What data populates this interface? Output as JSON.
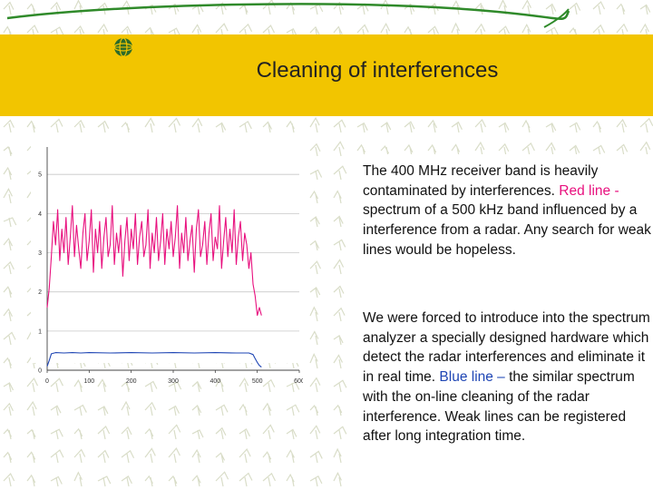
{
  "slide": {
    "title": "Cleaning of interferences",
    "colors": {
      "title_band": "#f2c500",
      "red_line": "#e8107e",
      "blue_line": "#1e45b4"
    }
  },
  "text": {
    "paragraph1": {
      "before": "The 400 MHz receiver band is heavily contaminated by interferences. ",
      "highlight": "Red line - ",
      "after": "spectrum of a 500 kHz band influenced by a interference from a radar. Any search for weak lines would be hopeless."
    },
    "paragraph2": {
      "before": "We were forced to introduce into the spectrum analyzer a specially designed hardware which detect the radar interferences and eliminate it in real time. ",
      "highlight": "Blue line – ",
      "after": "the similar spectrum with the on-line cleaning of the radar interference. Weak lines can be registered after long integration time."
    }
  },
  "chart_data": {
    "type": "line",
    "x_ticks": [
      "0",
      "100",
      "200",
      "300",
      "400",
      "500",
      "600"
    ],
    "y_ticks": [
      "0",
      "1",
      "2",
      "3",
      "4",
      "5"
    ],
    "xlim": [
      0,
      600
    ],
    "ylim": [
      0,
      5.7
    ],
    "grid": true,
    "series": [
      {
        "color": "#e8107e",
        "x": [
          0,
          5,
          10,
          15,
          20,
          25,
          30,
          35,
          40,
          45,
          50,
          55,
          60,
          65,
          70,
          75,
          80,
          85,
          90,
          95,
          100,
          105,
          110,
          115,
          120,
          125,
          130,
          135,
          140,
          145,
          150,
          155,
          160,
          165,
          170,
          175,
          180,
          185,
          190,
          195,
          200,
          205,
          210,
          215,
          220,
          225,
          230,
          235,
          240,
          245,
          250,
          255,
          260,
          265,
          270,
          275,
          280,
          285,
          290,
          295,
          300,
          305,
          310,
          315,
          320,
          325,
          330,
          335,
          340,
          345,
          350,
          355,
          360,
          365,
          370,
          375,
          380,
          385,
          390,
          395,
          400,
          405,
          410,
          415,
          420,
          425,
          430,
          435,
          440,
          445,
          450,
          455,
          460,
          465,
          470,
          475,
          480,
          485,
          490,
          495,
          500,
          505,
          510
        ],
        "y": [
          1.6,
          2.1,
          2.9,
          3.8,
          3.2,
          4.1,
          2.8,
          3.6,
          3.0,
          3.9,
          2.7,
          3.4,
          4.2,
          2.9,
          3.7,
          3.1,
          2.6,
          3.5,
          4.0,
          2.8,
          3.3,
          4.1,
          2.5,
          3.6,
          3.0,
          3.8,
          2.6,
          3.4,
          3.9,
          2.9,
          3.2,
          4.2,
          2.7,
          3.5,
          3.0,
          3.7,
          2.4,
          3.3,
          3.9,
          2.8,
          3.6,
          3.1,
          4.0,
          2.7,
          3.4,
          3.8,
          2.9,
          3.2,
          4.1,
          2.6,
          3.5,
          3.0,
          3.9,
          2.8,
          3.3,
          4.0,
          2.7,
          3.6,
          3.1,
          3.8,
          2.9,
          3.4,
          4.2,
          2.6,
          3.5,
          3.0,
          3.9,
          2.8,
          3.3,
          3.7,
          2.5,
          3.6,
          4.1,
          2.9,
          3.2,
          3.8,
          2.7,
          3.5,
          4.0,
          2.8,
          3.4,
          3.1,
          4.2,
          2.6,
          3.3,
          3.9,
          2.9,
          3.6,
          3.0,
          4.1,
          2.7,
          3.4,
          3.8,
          2.8,
          3.5,
          3.2,
          2.6,
          3.0,
          2.2,
          1.9,
          1.4,
          1.6,
          1.4
        ]
      },
      {
        "color": "#1e45b4",
        "x": [
          0,
          5,
          10,
          20,
          40,
          60,
          80,
          100,
          150,
          200,
          250,
          300,
          350,
          400,
          450,
          480,
          490,
          495,
          500,
          505,
          510
        ],
        "y": [
          0.1,
          0.25,
          0.42,
          0.45,
          0.44,
          0.45,
          0.44,
          0.45,
          0.44,
          0.45,
          0.44,
          0.45,
          0.44,
          0.45,
          0.44,
          0.44,
          0.4,
          0.3,
          0.2,
          0.12,
          0.08
        ]
      }
    ]
  }
}
